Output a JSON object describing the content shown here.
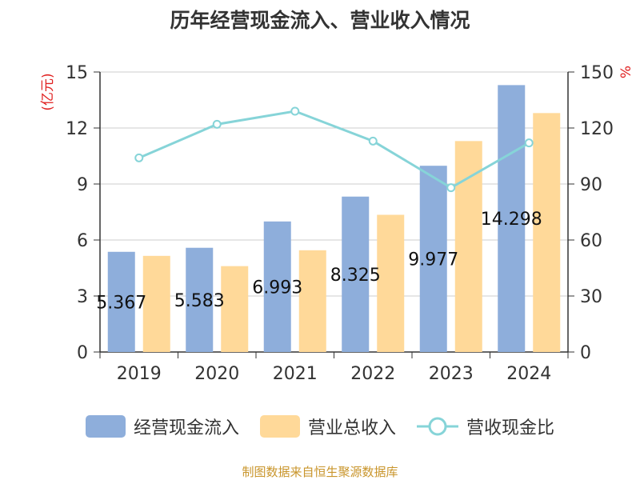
{
  "title": "历年经营现金流入、营业收入情况",
  "source": "制图数据来自恒生聚源数据库",
  "colors": {
    "cash_inflow": "#8eaedb",
    "revenue": "#ffd999",
    "ratio": "#86d4d8",
    "axis_left_label": "#e02020",
    "axis_right_label": "#e02020",
    "grid": "#cccccc",
    "axis": "#333333"
  },
  "chart_data": {
    "type": "bar",
    "title": "历年经营现金流入、营业收入情况",
    "categories": [
      "2019",
      "2020",
      "2021",
      "2022",
      "2023",
      "2024"
    ],
    "series": [
      {
        "name": "经营现金流入",
        "type": "bar",
        "axis": "left",
        "values": [
          5.367,
          5.583,
          6.993,
          8.325,
          9.977,
          14.298
        ],
        "labels": [
          "5.367",
          "5.583",
          "6.993",
          "8.325",
          "9.977",
          "14.298"
        ]
      },
      {
        "name": "营业总收入",
        "type": "bar",
        "axis": "left",
        "values": [
          5.15,
          4.6,
          5.45,
          7.35,
          11.3,
          12.8
        ]
      },
      {
        "name": "营收现金比",
        "type": "line",
        "axis": "right",
        "values": [
          104,
          122,
          129,
          113,
          88,
          112
        ]
      }
    ],
    "y_left": {
      "label": "(亿元)",
      "ylim": [
        0,
        15
      ],
      "ticks": [
        "0",
        "3",
        "6",
        "9",
        "12",
        "15"
      ]
    },
    "y_right": {
      "label": "%",
      "ylim": [
        0,
        150
      ],
      "ticks": [
        "0",
        "30",
        "60",
        "90",
        "120",
        "150"
      ]
    },
    "grid": true,
    "legend_position": "bottom"
  }
}
